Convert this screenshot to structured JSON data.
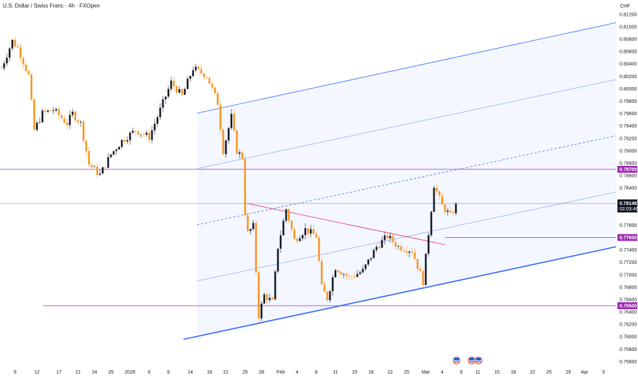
{
  "header": {
    "title": "U.S. Dollar / Swiss Franc · 4h · FXOpen"
  },
  "chart_data": {
    "type": "candlestick",
    "title": "U.S. Dollar / Swiss Franc · 4h · FXOpen",
    "currency": "CHF",
    "ylim": [
      0.755,
      0.813
    ],
    "y_ticks": [
      "0.81200",
      "0.81000",
      "0.80800",
      "0.80600",
      "0.80400",
      "0.80200",
      "0.80000",
      "0.79800",
      "0.79600",
      "0.79400",
      "0.79200",
      "0.79000",
      "0.78800",
      "0.78600",
      "0.78400",
      "0.77800",
      "0.77400",
      "0.77200",
      "0.77000",
      "0.76800",
      "0.76600",
      "0.76400",
      "0.76200",
      "0.76000",
      "0.75800",
      "0.75600"
    ],
    "x_ticks": [
      {
        "label": "9",
        "bar": 5
      },
      {
        "label": "12",
        "bar": 13
      },
      {
        "label": "17",
        "bar": 21
      },
      {
        "label": "21",
        "bar": 28
      },
      {
        "label": "24",
        "bar": 34
      },
      {
        "label": "29",
        "bar": 40
      },
      {
        "label": "2026",
        "bar": 47
      },
      {
        "label": "6",
        "bar": 54
      },
      {
        "label": "9",
        "bar": 61
      },
      {
        "label": "14",
        "bar": 69
      },
      {
        "label": "18",
        "bar": 76
      },
      {
        "label": "21",
        "bar": 82
      },
      {
        "label": "25",
        "bar": 89
      },
      {
        "label": "28",
        "bar": 95
      },
      {
        "label": "Feb",
        "bar": 102
      },
      {
        "label": "4",
        "bar": 108
      },
      {
        "label": "8",
        "bar": 115
      },
      {
        "label": "11",
        "bar": 122
      },
      {
        "label": "15",
        "bar": 129
      },
      {
        "label": "18",
        "bar": 135
      },
      {
        "label": "22",
        "bar": 142
      },
      {
        "label": "25",
        "bar": 148
      },
      {
        "label": "Mar",
        "bar": 155
      },
      {
        "label": "4",
        "bar": 161
      },
      {
        "label": "8",
        "bar": 168
      },
      {
        "label": "11",
        "bar": 174
      },
      {
        "label": "15",
        "bar": 181
      },
      {
        "label": "18",
        "bar": 187
      },
      {
        "label": "22",
        "bar": 194
      },
      {
        "label": "25",
        "bar": 200
      },
      {
        "label": "29",
        "bar": 207
      },
      {
        "label": "Apr",
        "bar": 213
      },
      {
        "label": "5",
        "bar": 220
      }
    ],
    "close_path": [
      [
        0,
        0.8033
      ],
      [
        4,
        0.8077
      ],
      [
        6,
        0.8066
      ],
      [
        10,
        0.8021
      ],
      [
        12,
        0.7933
      ],
      [
        15,
        0.796
      ],
      [
        19,
        0.7966
      ],
      [
        24,
        0.7944
      ],
      [
        26,
        0.796
      ],
      [
        29,
        0.7944
      ],
      [
        32,
        0.7878
      ],
      [
        36,
        0.7861
      ],
      [
        40,
        0.7894
      ],
      [
        44,
        0.7916
      ],
      [
        49,
        0.7933
      ],
      [
        54,
        0.7922
      ],
      [
        59,
        0.7977
      ],
      [
        62,
        0.801
      ],
      [
        66,
        0.7988
      ],
      [
        70,
        0.8033
      ],
      [
        75,
        0.8021
      ],
      [
        79,
        0.7977
      ],
      [
        81,
        0.79
      ],
      [
        84,
        0.7955
      ],
      [
        86,
        0.79
      ],
      [
        88,
        0.7889
      ],
      [
        89,
        0.78
      ],
      [
        90,
        0.7767
      ],
      [
        92,
        0.7778
      ],
      [
        94,
        0.7634
      ],
      [
        96,
        0.7667
      ],
      [
        99,
        0.7656
      ],
      [
        101,
        0.7745
      ],
      [
        104,
        0.7806
      ],
      [
        107,
        0.7756
      ],
      [
        111,
        0.7773
      ],
      [
        115,
        0.7762
      ],
      [
        117,
        0.7679
      ],
      [
        119,
        0.7662
      ],
      [
        122,
        0.7712
      ],
      [
        127,
        0.7695
      ],
      [
        132,
        0.7706
      ],
      [
        137,
        0.7745
      ],
      [
        141,
        0.7762
      ],
      [
        145,
        0.7745
      ],
      [
        150,
        0.7739
      ],
      [
        154,
        0.7689
      ],
      [
        156,
        0.7767
      ],
      [
        158,
        0.7845
      ],
      [
        161,
        0.7811
      ],
      [
        164,
        0.7795
      ],
      [
        166,
        0.7811
      ]
    ],
    "levels": [
      {
        "price": 0.787,
        "label": "0.78700",
        "color": "#9c27b0"
      },
      {
        "price": 0.776,
        "label": "0.77600",
        "color": "#9c27b0"
      },
      {
        "price": 0.765,
        "label": "0.76500",
        "color": "#9c27b0"
      }
    ],
    "last_price": {
      "label": "0.78148",
      "price": 0.78148,
      "countdown": "02:03:46"
    },
    "colors": {
      "up": "#131722",
      "down": "#f7931a",
      "channel": "#2962ff",
      "trend": "#e91e63"
    },
    "events": [
      "us-flag",
      "us-flag",
      "us-flag"
    ]
  }
}
